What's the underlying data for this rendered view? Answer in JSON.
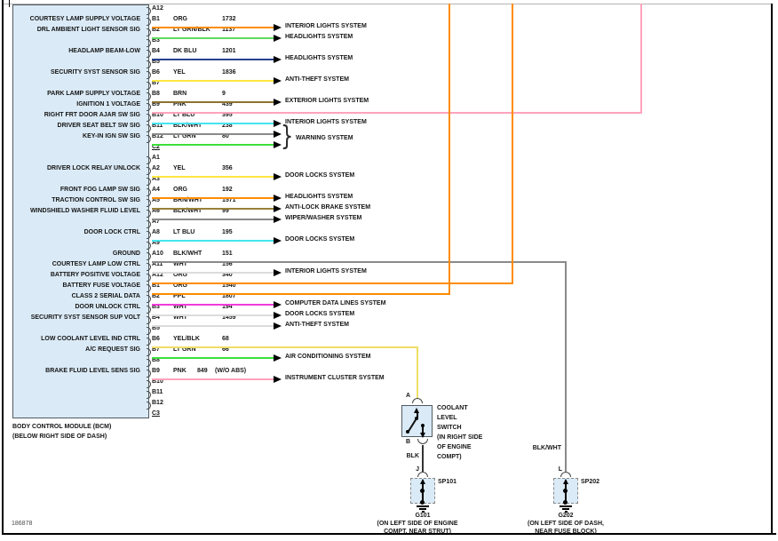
{
  "diagram_id": "186878",
  "bcm": {
    "name_line1": "BODY CONTROL MODULE (BCM)",
    "name_line2": "(BELOW RIGHT SIDE OF DASH)",
    "rows": [
      {
        "pin": "A12",
        "type": "pin"
      },
      {
        "pin": "B1",
        "type": "pin",
        "signal": "COURTESY LAMP SUPPLY VOLTAGE",
        "color_name": "ORG",
        "color": "#ff8c00",
        "circuit": "1732",
        "route": "arrow",
        "dest": "INTERIOR LIGHTS SYSTEM"
      },
      {
        "pin": "B2",
        "type": "pin",
        "signal": "DRL AMBIENT LIGHT SENSOR SIG",
        "color_name": "LT GRN/BLK",
        "color": "#5fd95f",
        "circuit": "1137",
        "route": "arrow",
        "dest": "HEADLIGHTS SYSTEM"
      },
      {
        "pin": "B3",
        "type": "pin"
      },
      {
        "pin": "B4",
        "type": "pin",
        "signal": "HEADLAMP BEAM-LOW",
        "color_name": "DK BLU",
        "color": "#28418f",
        "circuit": "1201",
        "route": "arrow",
        "dest": "HEADLIGHTS SYSTEM"
      },
      {
        "pin": "B5",
        "type": "pin"
      },
      {
        "pin": "B6",
        "type": "pin",
        "signal": "SECURITY SYST SENSOR SIG",
        "color_name": "YEL",
        "color": "#ffe741",
        "circuit": "1836",
        "route": "arrow",
        "dest": "ANTI-THEFT SYSTEM"
      },
      {
        "pin": "B7",
        "type": "pin"
      },
      {
        "pin": "B8",
        "type": "pin",
        "signal": "PARK LAMP SUPPLY VOLTAGE",
        "color_name": "BRN",
        "color": "#8d742c",
        "circuit": "9",
        "route": "arrow",
        "dest": "EXTERIOR LIGHTS SYSTEM"
      },
      {
        "pin": "B9",
        "type": "pin",
        "signal": "IGNITION 1 VOLTAGE",
        "color_name": "PNK",
        "color": "#ffa3bc",
        "circuit": "439",
        "route": "up"
      },
      {
        "pin": "B10",
        "type": "pin",
        "signal": "RIGHT FRT DOOR AJAR SW SIG",
        "color_name": "LT BLU",
        "color": "#45e5ef",
        "circuit": "395",
        "route": "arrow",
        "dest": "INTERIOR LIGHTS SYSTEM"
      },
      {
        "pin": "B11",
        "type": "pin",
        "signal": "DRIVER SEAT BELT SW SIG",
        "color_name": "BLK/WHT",
        "color": "#8a8a8a",
        "circuit": "238",
        "route": "brace"
      },
      {
        "pin": "B12",
        "type": "pin",
        "signal": "KEY-IN IGN SW SIG",
        "color_name": "LT GRN",
        "color": "#3bdf3b",
        "circuit": "80",
        "route": "brace"
      },
      {
        "pin": "C2",
        "type": "connector"
      },
      {
        "pin": "A1",
        "type": "pin"
      },
      {
        "pin": "A2",
        "type": "pin",
        "signal": "DRIVER LOCK RELAY UNLOCK",
        "color_name": "YEL",
        "color": "#ffe741",
        "circuit": "356",
        "route": "arrow",
        "dest": "DOOR LOCKS SYSTEM"
      },
      {
        "pin": "A3",
        "type": "pin"
      },
      {
        "pin": "A4",
        "type": "pin",
        "signal": "FRONT FOG LAMP SW SIG",
        "color_name": "ORG",
        "color": "#ff8c00",
        "circuit": "192",
        "route": "arrow",
        "dest": "HEADLIGHTS SYSTEM"
      },
      {
        "pin": "A5",
        "type": "pin",
        "signal": "TRACTION CONTROL SW SIG",
        "color_name": "BRN/WHT",
        "color": "#97803a",
        "circuit": "1571",
        "route": "arrow",
        "dest": "ANTI-LOCK BRAKE SYSTEM"
      },
      {
        "pin": "A6",
        "type": "pin",
        "signal": "WINDSHIELD WASHER FLUID LEVEL",
        "color_name": "BLK/WHT",
        "color": "#8a8a8a",
        "circuit": "99",
        "route": "arrow",
        "dest": "WIPER/WASHER SYSTEM"
      },
      {
        "pin": "A7",
        "type": "pin"
      },
      {
        "pin": "A8",
        "type": "pin",
        "signal": "DOOR LOCK CTRL",
        "color_name": "LT BLU",
        "color": "#45e5ef",
        "circuit": "195",
        "route": "arrow",
        "dest": "DOOR LOCKS SYSTEM"
      },
      {
        "pin": "A9",
        "type": "pin"
      },
      {
        "pin": "A10",
        "type": "pin",
        "signal": "GROUND",
        "color_name": "BLK/WHT",
        "color": "#8a8a8a",
        "circuit": "151",
        "route": "down"
      },
      {
        "pin": "A11",
        "type": "pin",
        "signal": "COURTESY LAMP LOW CTRL",
        "color_name": "WHT",
        "color": "#dcdcdc",
        "circuit": "156",
        "route": "arrow",
        "dest": "INTERIOR LIGHTS SYSTEM"
      },
      {
        "pin": "A12",
        "type": "pin",
        "signal": "BATTERY POSITIVE VOLTAGE",
        "color_name": "ORG",
        "color": "#ff8c00",
        "circuit": "340",
        "route": "up"
      },
      {
        "pin": "B1",
        "type": "pin",
        "signal": "BATTERY FUSE VOLTAGE",
        "color_name": "ORG",
        "color": "#ff8c00",
        "circuit": "1540",
        "route": "up"
      },
      {
        "pin": "B2",
        "type": "pin",
        "signal": "CLASS 2 SERIAL DATA",
        "color_name": "PPL",
        "color": "#f23bd9",
        "circuit": "1807",
        "route": "arrow",
        "dest": "COMPUTER DATA LINES SYSTEM"
      },
      {
        "pin": "B3",
        "type": "pin",
        "signal": "DOOR UNLOCK CTRL",
        "color_name": "WHT",
        "color": "#dcdcdc",
        "circuit": "194",
        "route": "arrow",
        "dest": "DOOR LOCKS SYSTEM"
      },
      {
        "pin": "B4",
        "type": "pin",
        "signal": "SECURITY SYST SENSOR SUP VOLT",
        "color_name": "WHT",
        "color": "#dcdcdc",
        "circuit": "1459",
        "route": "arrow",
        "dest": "ANTI-THEFT SYSTEM"
      },
      {
        "pin": "B5",
        "type": "pin"
      },
      {
        "pin": "B6",
        "type": "pin",
        "signal": "LOW COOLANT LEVEL IND CTRL",
        "color_name": "YEL/BLK",
        "color": "#eede66",
        "circuit": "68",
        "route": "switch"
      },
      {
        "pin": "B7",
        "type": "pin",
        "signal": "A/C REQUEST SIG",
        "color_name": "LT GRN",
        "color": "#3bdf3b",
        "circuit": "66",
        "route": "arrow",
        "dest": "AIR CONDITIONING SYSTEM"
      },
      {
        "pin": "B8",
        "type": "pin"
      },
      {
        "pin": "B9",
        "type": "pin",
        "signal": "BRAKE FLUID LEVEL SENS SIG",
        "color_name": "PNK",
        "color": "#ffa3bc",
        "circuit": "849",
        "extra": "(W/O ABS)",
        "route": "arrow",
        "dest": "INSTRUMENT CLUSTER SYSTEM"
      },
      {
        "pin": "B10",
        "type": "pin"
      },
      {
        "pin": "B11",
        "type": "pin"
      },
      {
        "pin": "B12",
        "type": "pin"
      },
      {
        "pin": "C3",
        "type": "connector"
      }
    ]
  },
  "warning_brace": {
    "label": "WARNING SYSTEM"
  },
  "coolant_switch": {
    "terminal_top": "A",
    "terminal_bottom": "B",
    "label_lines": [
      "COOLANT",
      "LEVEL",
      "SWITCH",
      "(IN RIGHT SIDE",
      "OF ENGINE",
      "COMPT)"
    ],
    "wire_label": "BLK",
    "splice_terminal": "J",
    "splice": "SP101",
    "ground": "G101",
    "location_lines": [
      "(ON LEFT SIDE OF ENGINE",
      "COMPT, NEAR STRUT)"
    ]
  },
  "ground2": {
    "wire_label": "BLK/WHT",
    "terminal": "L",
    "splice": "SP202",
    "ground": "G202",
    "location_lines": [
      "(ON LEFT SIDE OF DASH,",
      "NEAR FUSE BLOCK)"
    ]
  },
  "colors": {
    "box_fill": "#daeaf6",
    "wire_black": "#333333",
    "border": "#000000",
    "top_line": "#b3b3b3"
  }
}
